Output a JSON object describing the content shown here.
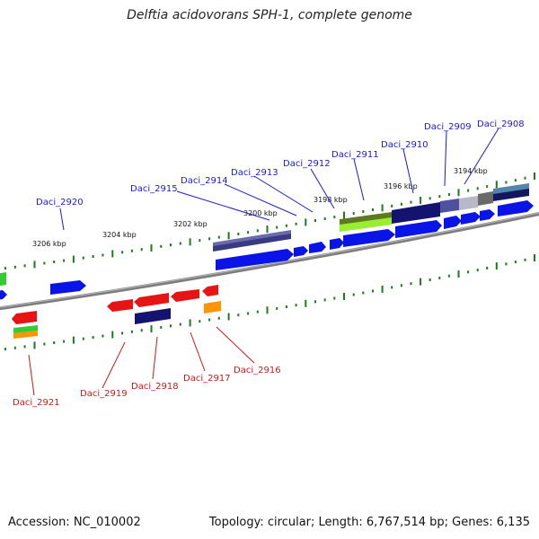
{
  "title": "Delftia acidovorans SPH-1, complete genome",
  "footer": {
    "accession": "Accession: NC_010002",
    "topology": "Topology: circular; Length: 6,767,514 bp; Genes: 6,135"
  },
  "ticks": [
    "3206 kbp",
    "3204 kbp",
    "3202 kbp",
    "3200 kbp",
    "3198 kbp",
    "3196 kbp",
    "3194 kbp"
  ],
  "genes_top": [
    "Daci_2920",
    "Daci_2915",
    "Daci_2914",
    "Daci_2913",
    "Daci_2912",
    "Daci_2911",
    "Daci_2910",
    "Daci_2909",
    "Daci_2908"
  ],
  "genes_bottom": [
    "Daci_2921",
    "Daci_2919",
    "Daci_2918",
    "Daci_2917",
    "Daci_2916"
  ],
  "colors": {
    "forward_gene": "#0a14e6",
    "reverse_gene": "#e61414",
    "top_label": "#1a1acc",
    "bottom_label": "#cc1a1a",
    "tick_green": "#1e7a1e",
    "backbone": "#8a8a8a"
  }
}
